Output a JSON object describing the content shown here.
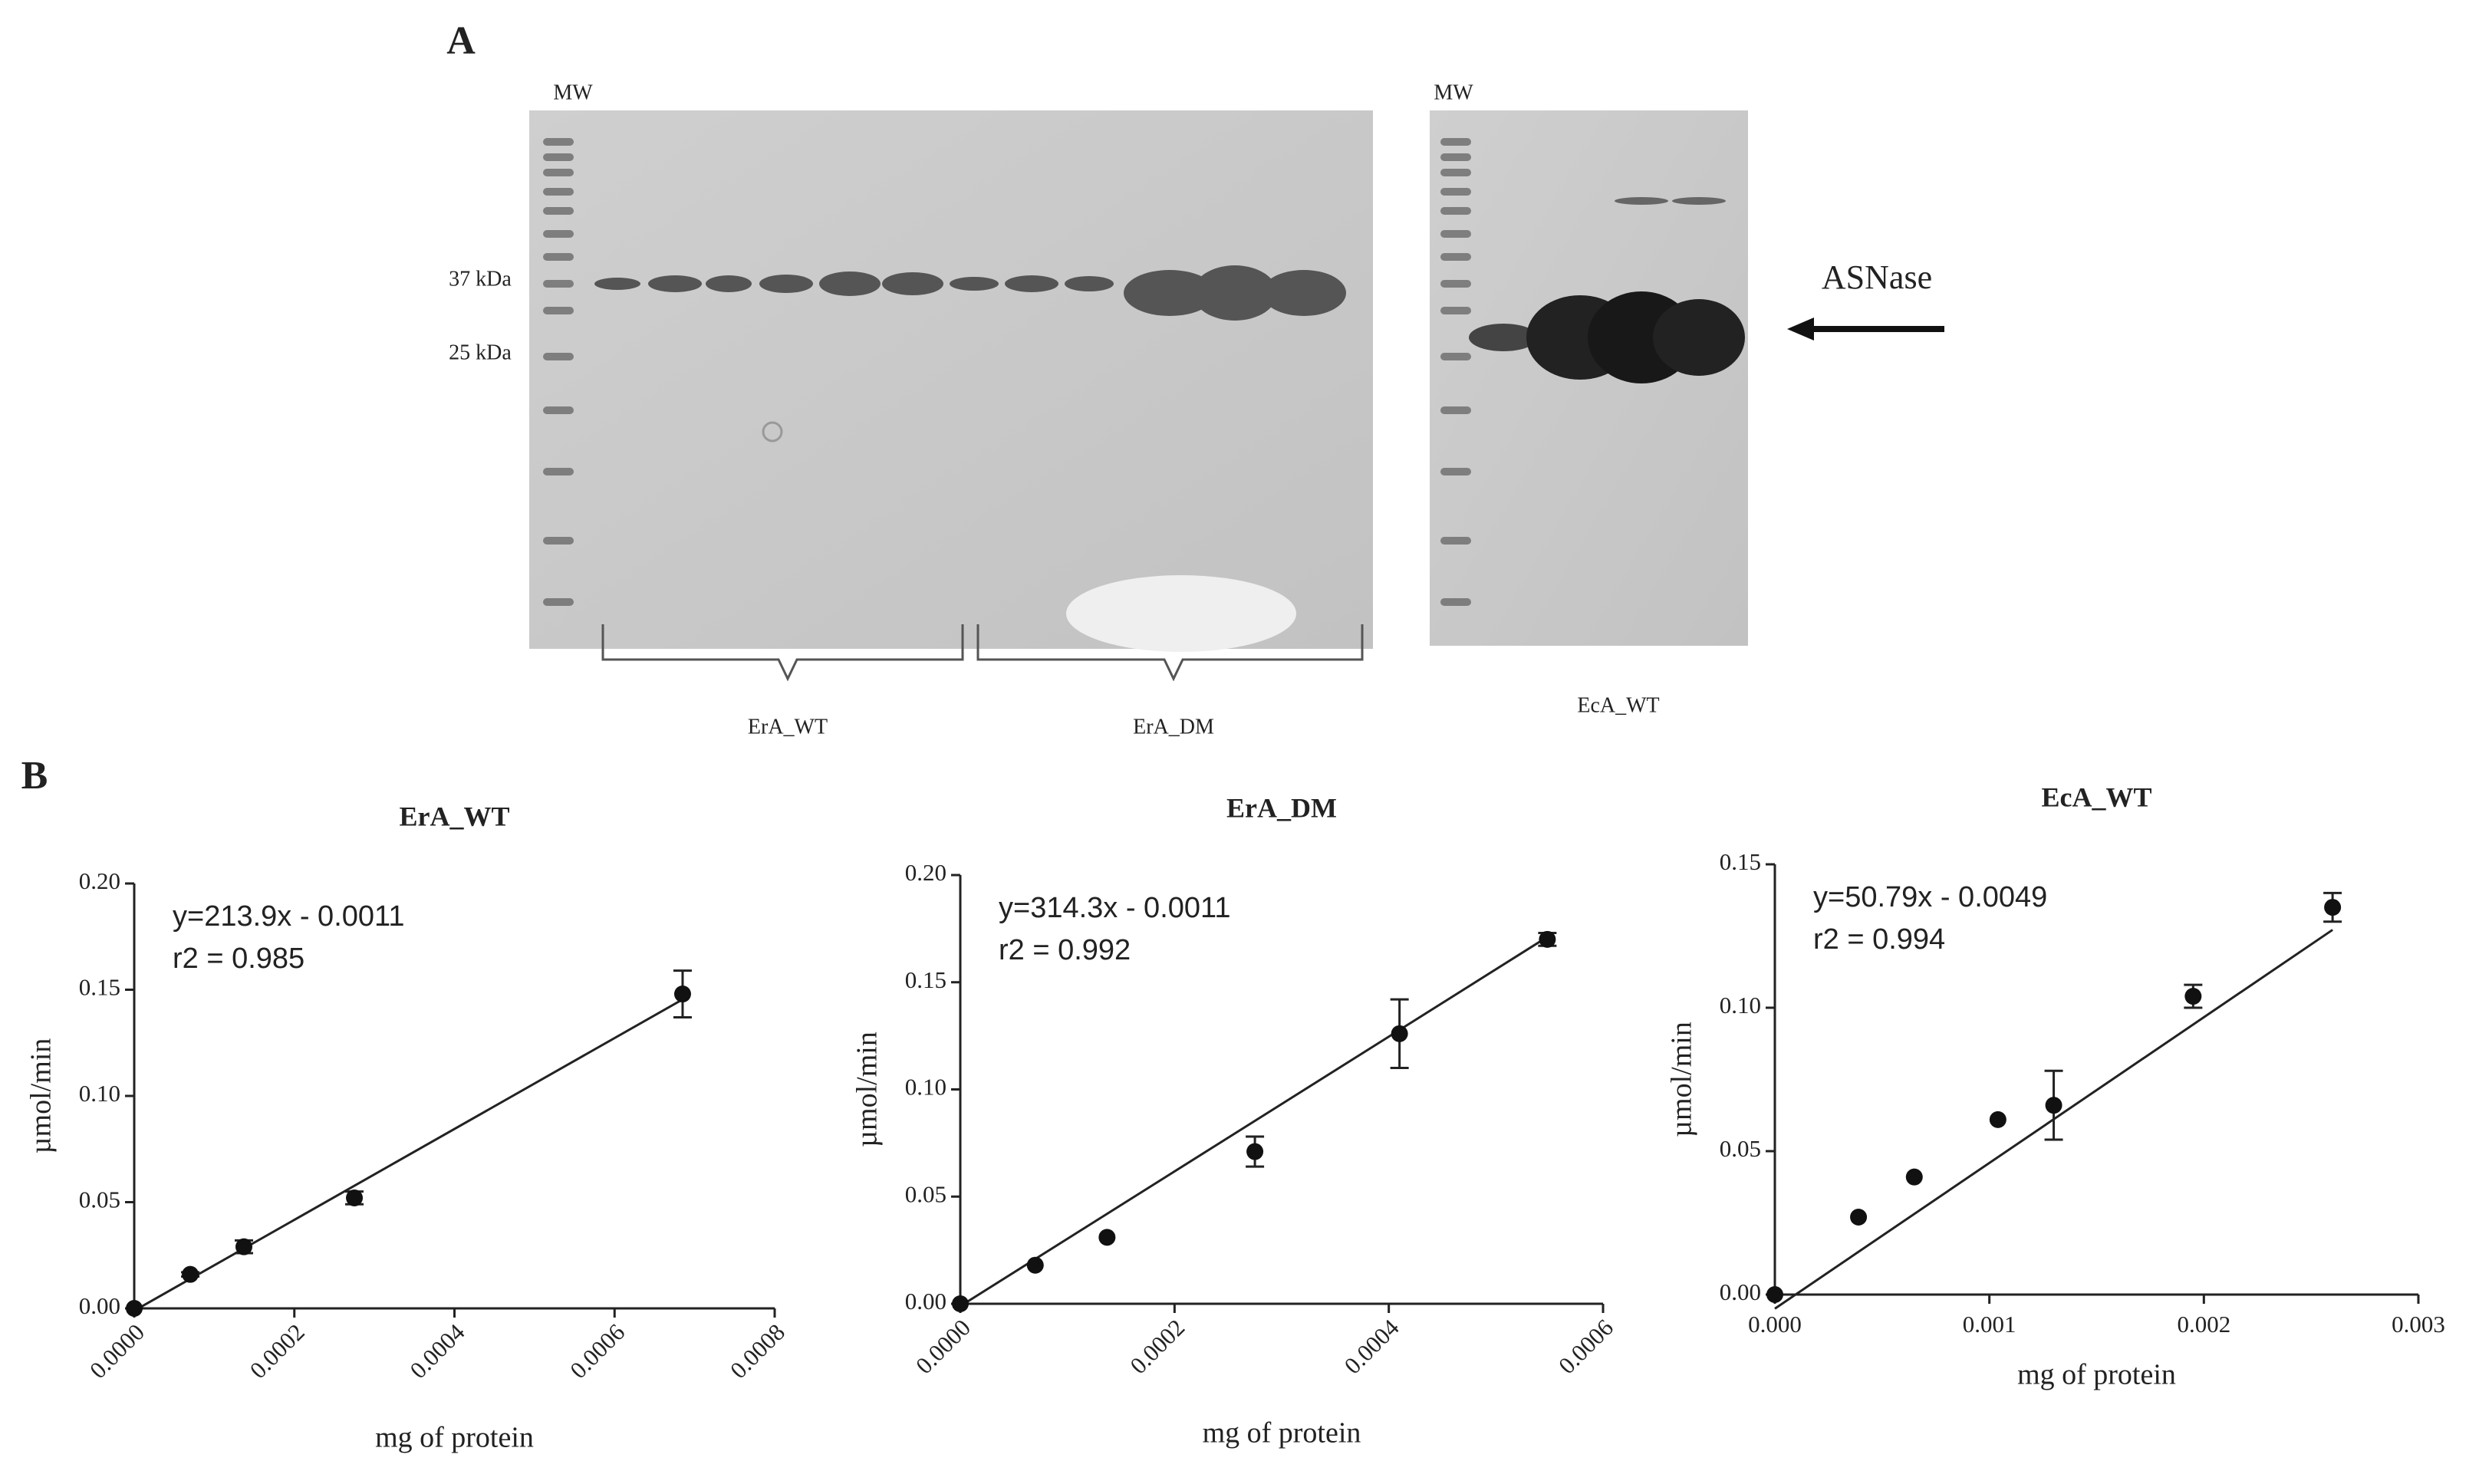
{
  "figure": {
    "panel_a": "A",
    "panel_b": "B",
    "mw_left": "MW",
    "mw_right": "MW",
    "marker_37": "37 kDa",
    "marker_25": "25 kDa",
    "arrow_label": "ASNase",
    "lane_group_1": "ErA_WT",
    "lane_group_2": "ErA_DM",
    "lane_group_3": "EcA_WT"
  },
  "chart_data": [
    {
      "type": "scatter",
      "title": "ErA_WT",
      "xlabel": "mg of protein",
      "ylabel": "µmol/min",
      "annotations": [
        "y=213.9x - 0.0011",
        "r2 = 0.985"
      ],
      "fit": {
        "slope": 213.9,
        "intercept": -0.0011
      },
      "x": [
        0,
        7e-05,
        0.000137,
        0.000275,
        0.000685
      ],
      "values": [
        0,
        0.016,
        0.029,
        0.052,
        0.148
      ],
      "errors": [
        0,
        0.001,
        0.003,
        0.003,
        0.011
      ],
      "color": "#111111",
      "xlim": [
        0,
        0.0008
      ],
      "xticks": [
        {
          "value": 0,
          "label": "0.0000"
        },
        {
          "value": 0.0002,
          "label": "0.0002"
        },
        {
          "value": 0.0004,
          "label": "0.0004"
        },
        {
          "value": 0.0006,
          "label": "0.0006"
        },
        {
          "value": 0.0008,
          "label": "0.0008"
        }
      ],
      "ylim": [
        0,
        0.2
      ],
      "yticks": [
        {
          "value": 0,
          "label": "0.00"
        },
        0.05,
        {
          "value": 0.1,
          "label": "0.10"
        },
        0.15,
        {
          "value": 0.2,
          "label": "0.20"
        }
      ]
    },
    {
      "type": "scatter",
      "title": "ErA_DM",
      "xlabel": "mg of protein",
      "ylabel": "µmol/min",
      "annotations": [
        "y=314.3x - 0.0011",
        "r2 = 0.992"
      ],
      "fit": {
        "slope": 314.3,
        "intercept": -0.0011
      },
      "x": [
        0,
        7e-05,
        0.000137,
        0.000275,
        0.00041,
        0.000548
      ],
      "values": [
        0,
        0.018,
        0.031,
        0.071,
        0.126,
        0.17
      ],
      "errors": [
        0,
        0,
        0,
        0.007,
        0.016,
        0.003
      ],
      "color": "#111111",
      "xlim": [
        0,
        0.0006
      ],
      "xticks": [
        {
          "value": 0,
          "label": "0.0000"
        },
        {
          "value": 0.0002,
          "label": "0.0002"
        },
        {
          "value": 0.0004,
          "label": "0.0004"
        },
        {
          "value": 0.0006,
          "label": "0.0006"
        }
      ],
      "ylim": [
        0,
        0.2
      ],
      "yticks": [
        {
          "value": 0,
          "label": "0.00"
        },
        0.05,
        {
          "value": 0.1,
          "label": "0.10"
        },
        0.15,
        {
          "value": 0.2,
          "label": "0.20"
        }
      ]
    },
    {
      "type": "scatter",
      "title": "EcA_WT",
      "xlabel": "mg of protein",
      "ylabel": "µmol/min",
      "annotations": [
        "y=50.79x - 0.0049",
        "r2 = 0.994"
      ],
      "fit": {
        "slope": 50.79,
        "intercept": -0.0049
      },
      "x": [
        0,
        0.00039,
        0.00065,
        0.00104,
        0.0013,
        0.00195,
        0.0026
      ],
      "values": [
        0,
        0.027,
        0.041,
        0.061,
        0.066,
        0.104,
        0.135
      ],
      "errors": [
        0,
        0,
        0,
        0,
        0.012,
        0.004,
        0.005
      ],
      "color": "#111111",
      "xlim": [
        0,
        0.003
      ],
      "xticks": [
        {
          "value": 0,
          "label": "0.000"
        },
        0.001,
        0.002,
        0.003
      ],
      "ylim": [
        0,
        0.15
      ],
      "yticks": [
        {
          "value": 0,
          "label": "0.00"
        },
        0.05,
        {
          "value": 0.1,
          "label": "0.10"
        },
        0.15
      ]
    }
  ]
}
